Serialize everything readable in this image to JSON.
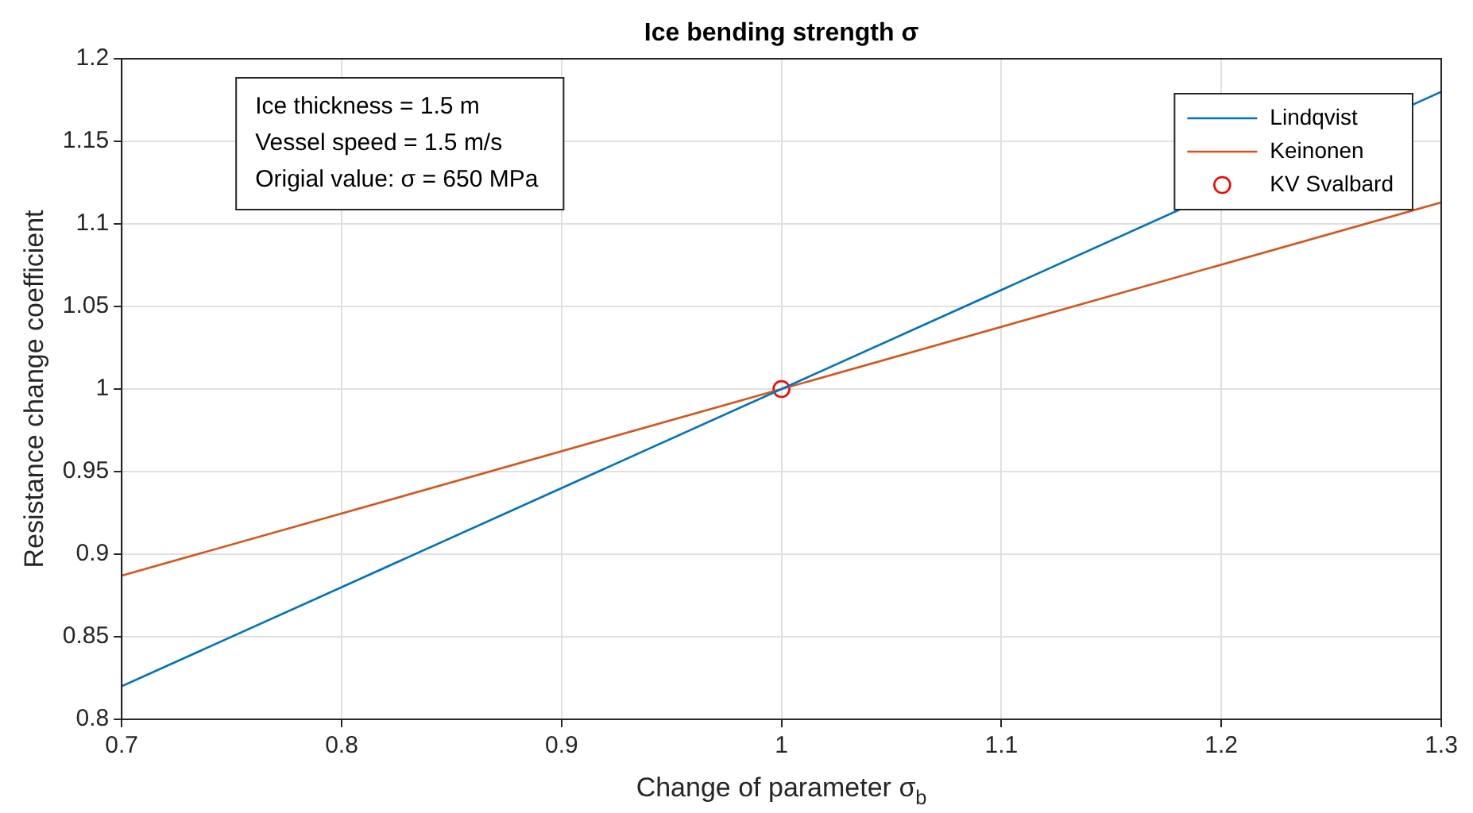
{
  "chart_data": {
    "type": "line",
    "title": "Ice bending strength σ",
    "xlabel": "Change of parameter σ$_{b}$",
    "ylabel": "Resistance change coefficient",
    "xlim": [
      0.7,
      1.3
    ],
    "xticks": [
      0.7,
      0.8,
      0.9,
      1,
      1.1,
      1.2,
      1.3
    ],
    "ylim": [
      0.8,
      1.2
    ],
    "yticks": [
      0.8,
      0.85,
      0.9,
      0.95,
      1,
      1.05,
      1.1,
      1.15,
      1.2
    ],
    "grid": true,
    "legend": "top right",
    "annotations": [
      "Ice thickness = 1.5 m",
      "Vessel speed = 1.5 m/s",
      "Origial value: σ = 650 MPa"
    ],
    "series": [
      {
        "name": "Lindqvist",
        "type": "line",
        "color": "#0072bd",
        "x": [
          0.7,
          1.3
        ],
        "values": [
          0.82,
          1.18
        ],
        "marker": "none"
      },
      {
        "name": "Keinonen",
        "type": "line",
        "color": "#d95319",
        "x": [
          0.7,
          1.3
        ],
        "values": [
          0.887,
          1.113
        ],
        "marker": "none"
      },
      {
        "name": "KV Svalbard",
        "type": "scatter",
        "color": "#ff0000",
        "x": [
          1
        ],
        "values": [
          1
        ],
        "marker": "circle"
      }
    ]
  }
}
